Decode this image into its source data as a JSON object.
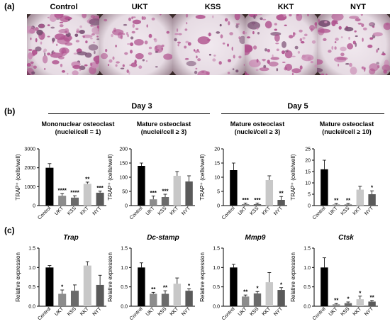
{
  "panel_labels": {
    "a": "(a)",
    "b": "(b)",
    "c": "(c)"
  },
  "micrographs": [
    {
      "label": "Control",
      "density": 0.95
    },
    {
      "label": "UKT",
      "density": 0.35
    },
    {
      "label": "KSS",
      "density": 0.3
    },
    {
      "label": "KKT",
      "density": 0.55
    },
    {
      "label": "NYT",
      "density": 0.45
    }
  ],
  "row_b": {
    "day3": "Day 3",
    "day5": "Day 5",
    "subtitles": [
      {
        "line1": "Mononuclear osteoclast",
        "line2": "(nuclei/cell = 1)"
      },
      {
        "line1": "Mature osteoclast",
        "line2": "(nuclei/cell ≥ 3)"
      },
      {
        "line1": "Mature osteoclast",
        "line2": "(nuclei/cell ≥ 3)"
      },
      {
        "line1": "Mature osteoclast",
        "line2": "(nuclei/cell ≥ 10)"
      }
    ]
  },
  "row_c": {
    "genes": [
      "Trap",
      "Dc-stamp",
      "Mmp9",
      "Ctsk"
    ]
  },
  "colors": {
    "Control": "#000000",
    "UKT": "#8c8c8c",
    "KSS": "#6b6b6b",
    "KKT": "#c8c8c8",
    "NYT": "#5a5a5a"
  },
  "chart_data": [
    {
      "type": "bar",
      "row": "b",
      "ylabel": "TRAP⁺ (cells/well)",
      "ylim": [
        0,
        3000
      ],
      "yticks": [
        "0",
        "1000",
        "2000",
        "3000"
      ],
      "categories": [
        "Control",
        "UKT",
        "KSS",
        "KKT",
        "NYT"
      ],
      "values": [
        2000,
        520,
        420,
        1150,
        680
      ],
      "errors": [
        220,
        120,
        100,
        90,
        90
      ],
      "sig": [
        "",
        "****",
        "****",
        "**",
        "***"
      ]
    },
    {
      "type": "bar",
      "row": "b",
      "ylabel": "TRAP⁺ (cells/well)",
      "ylim": [
        0,
        200
      ],
      "yticks": [
        "0",
        "50",
        "100",
        "150",
        "200"
      ],
      "categories": [
        "Control",
        "UKT",
        "KSS",
        "KKT",
        "NYT"
      ],
      "values": [
        140,
        22,
        30,
        105,
        85
      ],
      "errors": [
        10,
        12,
        10,
        15,
        20
      ],
      "sig": [
        "",
        "***",
        "***",
        "",
        ""
      ]
    },
    {
      "type": "bar",
      "row": "b",
      "ylabel": "TRAP⁺ (cells/well)",
      "ylim": [
        0,
        20
      ],
      "yticks": [
        "0",
        "5",
        "10",
        "15",
        "20"
      ],
      "categories": [
        "Control",
        "UKT",
        "KSS",
        "KKT",
        "NYT"
      ],
      "values": [
        12.5,
        0.5,
        0.5,
        9,
        2
      ],
      "errors": [
        2.5,
        0.4,
        0.4,
        1.5,
        1.2
      ],
      "sig": [
        "",
        "***",
        "***",
        "",
        "**"
      ]
    },
    {
      "type": "bar",
      "row": "b",
      "ylabel": "TRAP⁺ (cells/well)",
      "ylim": [
        0,
        25
      ],
      "yticks": [
        "0",
        "5",
        "10",
        "15",
        "20",
        "25"
      ],
      "categories": [
        "Control",
        "UKT",
        "KSS",
        "KKT",
        "NYT"
      ],
      "values": [
        16,
        0.5,
        0.5,
        7,
        5
      ],
      "errors": [
        4,
        0.4,
        0.4,
        1.5,
        1.5
      ],
      "sig": [
        "",
        "**",
        "**",
        "",
        "*"
      ]
    },
    {
      "type": "bar",
      "row": "c",
      "title": "Trap",
      "ylabel": "Relative expression",
      "ylim": [
        0,
        1.5
      ],
      "yticks": [
        "0.0",
        "0.5",
        "1.0",
        "1.5"
      ],
      "categories": [
        "Control",
        "UKT",
        "KSS",
        "KKT",
        "NYT"
      ],
      "values": [
        1.0,
        0.32,
        0.4,
        1.05,
        0.55
      ],
      "errors": [
        0.05,
        0.1,
        0.15,
        0.1,
        0.25
      ],
      "sig": [
        "",
        "*",
        "",
        "",
        ""
      ]
    },
    {
      "type": "bar",
      "row": "c",
      "title": "Dc-stamp",
      "ylabel": "Relative expression",
      "ylim": [
        0,
        1.5
      ],
      "yticks": [
        "0.0",
        "0.5",
        "1.0",
        "1.5"
      ],
      "categories": [
        "Control",
        "UKT",
        "KSS",
        "KKT",
        "NYT"
      ],
      "values": [
        1.0,
        0.32,
        0.32,
        0.58,
        0.4
      ],
      "errors": [
        0.12,
        0.04,
        0.08,
        0.15,
        0.05
      ],
      "sig": [
        "",
        "**",
        "**",
        "",
        "*"
      ]
    },
    {
      "type": "bar",
      "row": "c",
      "title": "Mmp9",
      "ylabel": "Relative expression",
      "ylim": [
        0,
        1.5
      ],
      "yticks": [
        "0.0",
        "0.5",
        "1.0",
        "1.5"
      ],
      "categories": [
        "Control",
        "UKT",
        "KSS",
        "KKT",
        "NYT"
      ],
      "values": [
        1.0,
        0.25,
        0.33,
        0.62,
        0.42
      ],
      "errors": [
        0.08,
        0.04,
        0.05,
        0.25,
        0.06
      ],
      "sig": [
        "",
        "**",
        "*",
        "",
        "*"
      ]
    },
    {
      "type": "bar",
      "row": "c",
      "title": "Ctsk",
      "ylabel": "Relative expression",
      "ylim": [
        0,
        1.5
      ],
      "yticks": [
        "0.0",
        "0.5",
        "1.0",
        "1.5"
      ],
      "categories": [
        "Control",
        "UKT",
        "KSS",
        "KKT",
        "NYT"
      ],
      "values": [
        1.0,
        0.05,
        0.08,
        0.18,
        0.12
      ],
      "errors": [
        0.25,
        0.02,
        0.03,
        0.08,
        0.03
      ],
      "sig": [
        "",
        "**",
        "*",
        "*",
        "**"
      ]
    }
  ]
}
